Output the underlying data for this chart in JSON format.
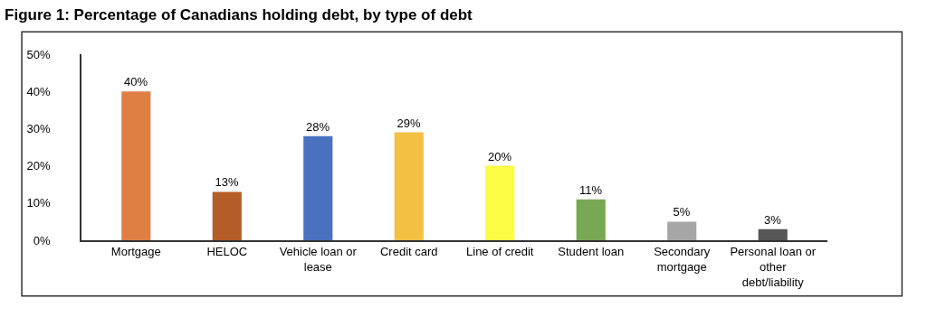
{
  "chart_data": {
    "type": "bar",
    "title": "Figure 1: Percentage of Canadians holding debt, by type of debt",
    "categories": [
      "Mortgage",
      "HELOC",
      "Vehicle loan or lease",
      "Credit card",
      "Line of credit",
      "Student loan",
      "Secondary mortgage",
      "Personal loan or other debt/liability"
    ],
    "values": [
      40,
      13,
      28,
      29,
      20,
      11,
      5,
      3
    ],
    "colors": [
      "#e07f44",
      "#b55d28",
      "#4a71c0",
      "#f4c043",
      "#fcfc45",
      "#78a854",
      "#a6a6a6",
      "#575757"
    ],
    "value_labels": [
      "40%",
      "13%",
      "28%",
      "29%",
      "20%",
      "11%",
      "5%",
      "3%"
    ],
    "ylim": [
      0,
      50
    ],
    "yticks": [
      {
        "value": 0,
        "label": "0%"
      },
      {
        "value": 10,
        "label": "10%"
      },
      {
        "value": 20,
        "label": "20%"
      },
      {
        "value": 30,
        "label": "30%"
      },
      {
        "value": 40,
        "label": "40%"
      },
      {
        "value": 50,
        "label": "50%"
      }
    ]
  }
}
